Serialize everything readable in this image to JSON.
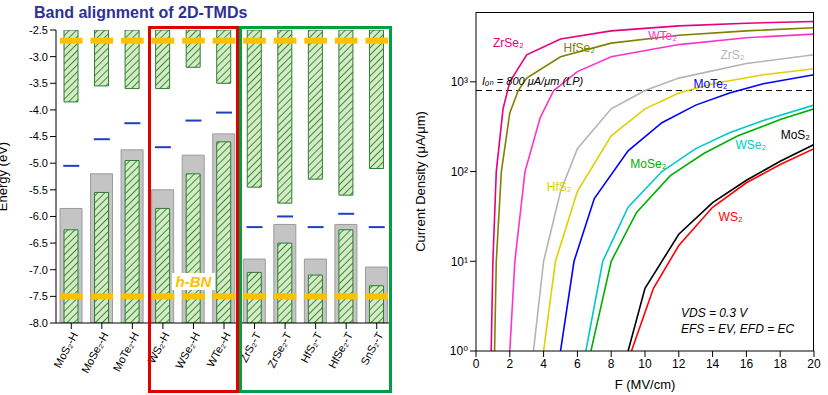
{
  "chart_data": [
    {
      "type": "bar",
      "title": "Band alignment of 2D-TMDs",
      "y_label": "Energy (eV)",
      "categories": [
        "MoS₂-H",
        "MoSe₂-H",
        "MoTe₂-H",
        "WS₂-H",
        "WSe₂-H",
        "WTe₂-H",
        "ZrS₂-T",
        "ZrSe₂-T",
        "HfS₂-T",
        "HfSe₂-T",
        "SnS₂-T"
      ],
      "conduction_band": {
        "color": "#2e7d32",
        "values": [
          -3.85,
          -3.55,
          -3.6,
          -3.6,
          -3.2,
          -3.5,
          -5.45,
          -5.75,
          -5.3,
          -5.6,
          -5.1
        ]
      },
      "valence_band": {
        "color": "#2e7d32",
        "values": [
          -6.25,
          -5.55,
          -4.95,
          -5.85,
          -5.2,
          -4.6,
          -7.05,
          -6.5,
          -7.1,
          -6.25,
          -7.3
        ]
      },
      "gray_valence": {
        "color": "#c4c4c4",
        "values": [
          -5.85,
          -5.2,
          -4.75,
          -5.5,
          -4.85,
          -4.45,
          -6.8,
          -6.15,
          -6.8,
          -6.15,
          -6.95
        ]
      },
      "midgap": {
        "color": "#1f3fbf",
        "marker": "dash",
        "values": [
          -5.05,
          -4.55,
          -4.25,
          -4.7,
          -4.2,
          -4.05,
          -6.2,
          -6.0,
          -6.2,
          -5.95,
          -6.2
        ]
      },
      "h_bn": {
        "label": "h-BN",
        "color": "#ffc000",
        "marker": "dash",
        "values": [
          -2.7,
          -7.5
        ]
      },
      "groups": [
        {
          "categories": [
            "WS₂-H",
            "WSe₂-H",
            "WTe₂-H"
          ],
          "color": "#e00000"
        },
        {
          "categories": [
            "ZrS₂-T",
            "ZrSe₂-T",
            "HfS₂-T",
            "HfSe₂-T",
            "SnS₂-T"
          ],
          "color": "#00a040"
        }
      ],
      "ylim": [
        -8,
        -2.5
      ],
      "yticks": [
        {
          "value": -8,
          "label": "-8.0"
        },
        -7.5,
        {
          "value": -7,
          "label": "-7.0"
        },
        -6.5,
        {
          "value": -6,
          "label": "-6.0"
        },
        -5.5,
        {
          "value": -5,
          "label": "-5.0"
        },
        -4.5,
        {
          "value": -4,
          "label": "-4.0"
        },
        -3.5,
        {
          "value": -3,
          "label": "-3.0"
        },
        -2.5
      ],
      "grid": false
    },
    {
      "type": "line",
      "x_label": "F (MV/cm)",
      "y_label": "Current Density (μA/μm)",
      "log": "y",
      "xlim": [
        0,
        20
      ],
      "xticks": [
        0,
        2,
        4,
        6,
        8,
        10,
        12,
        14,
        16,
        18,
        20
      ],
      "ylim": [
        1,
        6000
      ],
      "yticks": [
        {
          "value": 1,
          "label": "10⁰"
        },
        {
          "value": 10,
          "label": "10¹"
        },
        {
          "value": 100,
          "label": "10²"
        },
        {
          "value": 1000,
          "label": "10³"
        }
      ],
      "grid": false,
      "series": [
        {
          "name": "ZrSe₂",
          "color": "#e6007e",
          "x": [
            0.9,
            1,
            1.2,
            1.6,
            2,
            3,
            5,
            8,
            12,
            16,
            20
          ],
          "values": [
            1,
            10,
            100,
            500,
            1000,
            2000,
            3000,
            3700,
            4200,
            4500,
            4700
          ]
        },
        {
          "name": "HfSe₂",
          "color": "#808000",
          "x": [
            1.1,
            1.2,
            1.5,
            2,
            2.5,
            3,
            5,
            8,
            12,
            16,
            20
          ],
          "values": [
            1,
            10,
            100,
            450,
            800,
            1100,
            1900,
            2700,
            3300,
            3700,
            4000
          ]
        },
        {
          "name": "WTe₂",
          "color": "#ff33cc",
          "x": [
            2,
            2.3,
            2.9,
            3.8,
            4.6,
            6,
            8,
            12,
            16,
            20
          ],
          "values": [
            1,
            10,
            100,
            400,
            800,
            1300,
            1900,
            2600,
            3100,
            3400
          ]
        },
        {
          "name": "ZrS₂",
          "color": "#b4b4b4",
          "x": [
            3.4,
            4,
            5,
            6,
            8,
            10,
            12,
            16,
            20
          ],
          "values": [
            1,
            10,
            60,
            180,
            500,
            800,
            1100,
            1600,
            2000
          ]
        },
        {
          "name": "HfS₂",
          "color": "#e0d000",
          "x": [
            4,
            4.7,
            6,
            8,
            10,
            12,
            14,
            17,
            20
          ],
          "values": [
            1,
            10,
            60,
            250,
            500,
            750,
            950,
            1200,
            1400
          ]
        },
        {
          "name": "MoTe₂",
          "color": "#0000ff",
          "x": [
            5,
            5.8,
            7,
            9,
            11,
            13,
            15,
            17,
            20
          ],
          "values": [
            1,
            10,
            50,
            170,
            350,
            550,
            750,
            950,
            1200
          ]
        },
        {
          "name": "WSe₂",
          "color": "#00c8c8",
          "x": [
            6.5,
            7.5,
            9,
            11,
            13,
            15,
            17,
            20
          ],
          "values": [
            1,
            10,
            40,
            100,
            180,
            270,
            370,
            550
          ]
        },
        {
          "name": "MoSe₂",
          "color": "#00b000",
          "x": [
            6.8,
            8,
            9.5,
            11.5,
            13.5,
            15.5,
            18,
            20
          ],
          "values": [
            1,
            10,
            35,
            90,
            160,
            250,
            380,
            500
          ]
        },
        {
          "name": "MoS₂",
          "color": "#000000",
          "x": [
            9,
            10,
            12,
            14,
            16,
            18,
            20
          ],
          "values": [
            1,
            5,
            20,
            45,
            80,
            130,
            200
          ]
        },
        {
          "name": "WS₂",
          "color": "#ff0000",
          "x": [
            9.2,
            10.5,
            12,
            14,
            16,
            18,
            20
          ],
          "values": [
            1,
            5,
            15,
            40,
            75,
            120,
            180
          ]
        }
      ],
      "annotations": [
        {
          "text": "Iₒₙ = 800 μA/μm (LP)",
          "y": 800,
          "line_style": "dashed"
        },
        {
          "text": "VDS = 0.3 V"
        },
        {
          "text": "EFS = EV, EFD = EC"
        }
      ]
    }
  ]
}
